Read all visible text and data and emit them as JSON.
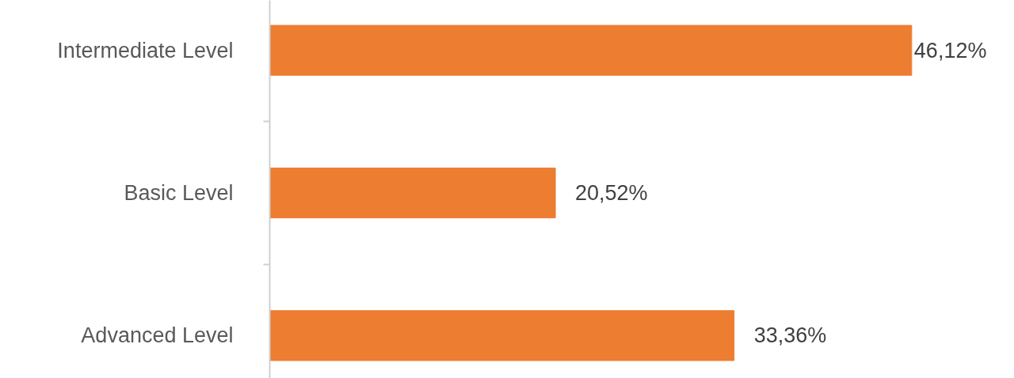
{
  "chart_data": {
    "type": "bar",
    "orientation": "horizontal",
    "categories": [
      "Intermediate Level",
      "Basic Level",
      "Advanced Level"
    ],
    "values": [
      46.12,
      20.52,
      33.36
    ],
    "value_labels": [
      "46,12%",
      "20,52%",
      "33,36%"
    ],
    "color": "#ed7d31",
    "grid": false,
    "tick_labels": "y"
  }
}
